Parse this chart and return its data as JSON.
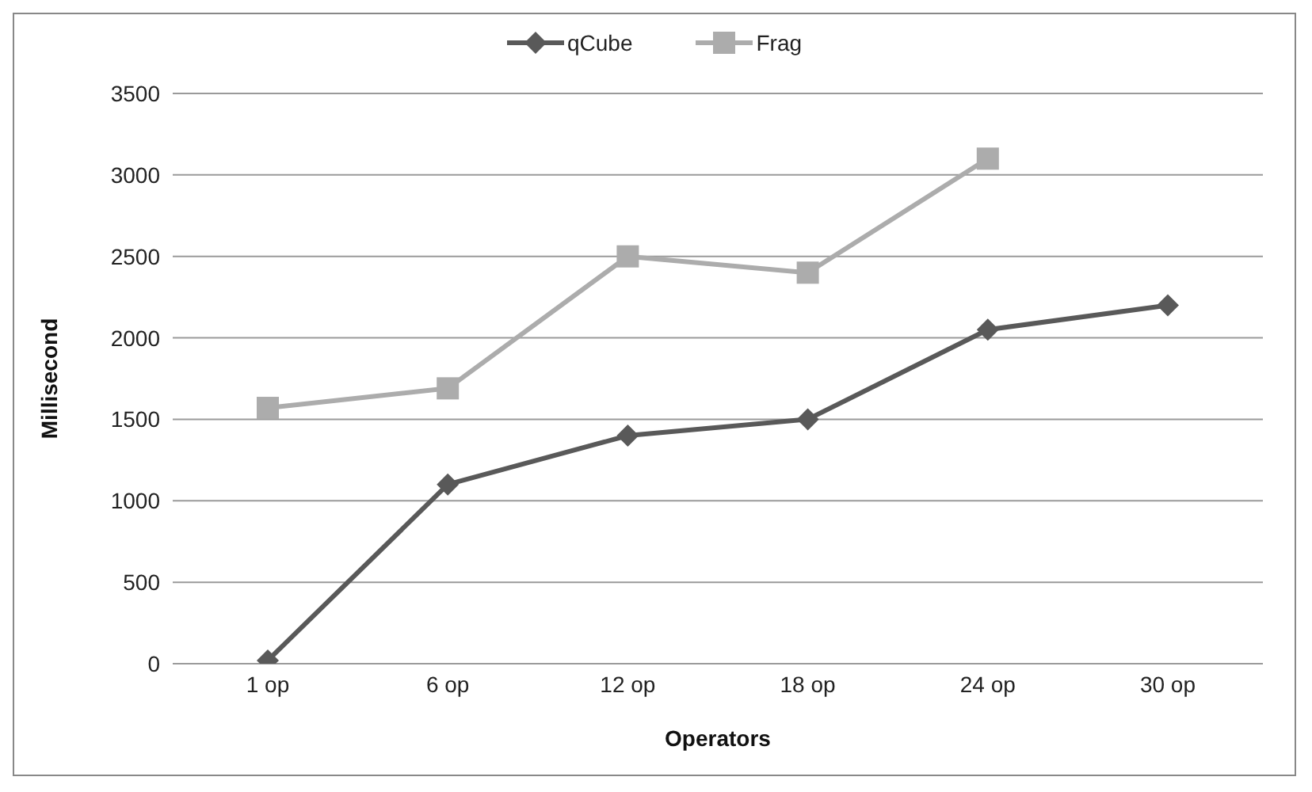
{
  "chart_data": {
    "type": "line",
    "xlabel": "Operators",
    "ylabel": "Millisecond",
    "categories": [
      "1 op",
      "6 op",
      "12 op",
      "18 op",
      "24 op",
      "30 op"
    ],
    "series": [
      {
        "name": "qCube",
        "color": "#595959",
        "marker": "diamond",
        "values": [
          20,
          1100,
          1400,
          1500,
          2050,
          2200
        ]
      },
      {
        "name": "Frag",
        "color": "#acacac",
        "marker": "square",
        "values": [
          1570,
          1690,
          2500,
          2400,
          3100,
          null
        ]
      }
    ],
    "ylim": [
      0,
      3500
    ],
    "yticks": [
      0,
      500,
      1000,
      1500,
      2000,
      2500,
      3000,
      3500
    ],
    "grid": "y",
    "legend": "top",
    "line_style": "solid"
  }
}
